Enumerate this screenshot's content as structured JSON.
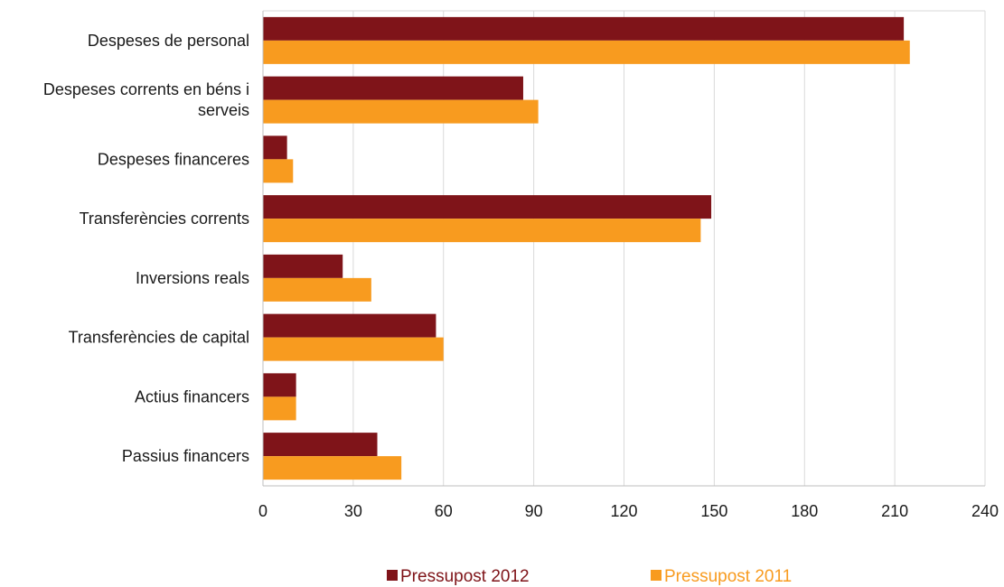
{
  "colors": {
    "series_2012": "#7F1419",
    "series_2011": "#F89B1F",
    "grid": "#d9d9d9",
    "axis": "#bfbfbf"
  },
  "legend": {
    "item_2012": "Pressupost 2012",
    "item_2011": "Pressupost 2011"
  },
  "chart_data": {
    "type": "bar",
    "orientation": "horizontal",
    "categories": [
      "Despeses de personal",
      "Despeses corrents en béns i serveis",
      "Despeses financeres",
      "Transferències corrents",
      "Inversions reals",
      "Transferències de capital",
      "Actius financers",
      "Passius financers"
    ],
    "series": [
      {
        "name": "Pressupost 2012",
        "values": [
          213,
          86.5,
          8,
          149,
          26.5,
          57.5,
          11,
          38
        ]
      },
      {
        "name": "Pressupost 2011",
        "values": [
          215,
          91.5,
          10,
          145.5,
          36,
          60,
          11,
          46
        ]
      }
    ],
    "xticks": [
      "0",
      "30",
      "60",
      "90",
      "120",
      "150",
      "180",
      "210",
      "240"
    ],
    "xlim": [
      0,
      240
    ],
    "grid": true,
    "legend_position": "bottom"
  }
}
